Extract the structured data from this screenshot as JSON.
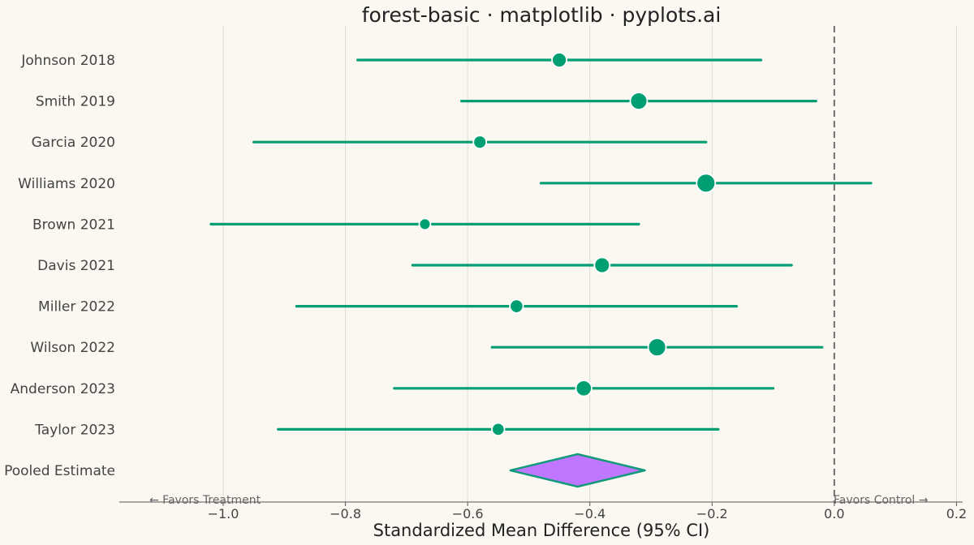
{
  "chart_data": {
    "type": "forest",
    "title": "forest-basic · matplotlib · pyplots.ai",
    "xlabel": "Standardized Mean Difference (95% CI)",
    "xlim": [
      -1.17,
      0.21
    ],
    "xticks": [
      -1.0,
      -0.8,
      -0.6,
      -0.4,
      -0.2,
      0.0,
      0.2
    ],
    "xtick_labels": [
      "−1.0",
      "−0.8",
      "−0.6",
      "−0.4",
      "−0.2",
      "0.0",
      "0.2"
    ],
    "grid": "vertical",
    "reference_line": 0.0,
    "studies": [
      {
        "name": "Johnson 2018",
        "estimate": -0.45,
        "ci_low": -0.78,
        "ci_high": -0.12,
        "weight": 1.0
      },
      {
        "name": "Smith 2019",
        "estimate": -0.32,
        "ci_low": -0.61,
        "ci_high": -0.03,
        "weight": 1.3
      },
      {
        "name": "Garcia 2020",
        "estimate": -0.58,
        "ci_low": -0.95,
        "ci_high": -0.21,
        "weight": 0.8
      },
      {
        "name": "Williams 2020",
        "estimate": -0.21,
        "ci_low": -0.48,
        "ci_high": 0.06,
        "weight": 1.5
      },
      {
        "name": "Brown 2021",
        "estimate": -0.67,
        "ci_low": -1.02,
        "ci_high": -0.32,
        "weight": 0.6
      },
      {
        "name": "Davis 2021",
        "estimate": -0.38,
        "ci_low": -0.69,
        "ci_high": -0.07,
        "weight": 1.1
      },
      {
        "name": "Miller 2022",
        "estimate": -0.52,
        "ci_low": -0.88,
        "ci_high": -0.16,
        "weight": 0.85
      },
      {
        "name": "Wilson 2022",
        "estimate": -0.29,
        "ci_low": -0.56,
        "ci_high": -0.02,
        "weight": 1.4
      },
      {
        "name": "Anderson 2023",
        "estimate": -0.41,
        "ci_low": -0.72,
        "ci_high": -0.1,
        "weight": 1.15
      },
      {
        "name": "Taylor 2023",
        "estimate": -0.55,
        "ci_low": -0.91,
        "ci_high": -0.19,
        "weight": 0.75
      }
    ],
    "pooled": {
      "name": "Pooled Estimate",
      "estimate": -0.42,
      "ci_low": -0.53,
      "ci_high": -0.31
    },
    "annotations": {
      "left": "← Favors Treatment",
      "right": "Favors Control →"
    },
    "colors": {
      "study": "#009E73",
      "pooled_fill": "#C077FF",
      "pooled_stroke": "#129A7B",
      "reference": "#707070",
      "grid": "#DDDCD5",
      "background": "#FAF8F1"
    }
  }
}
